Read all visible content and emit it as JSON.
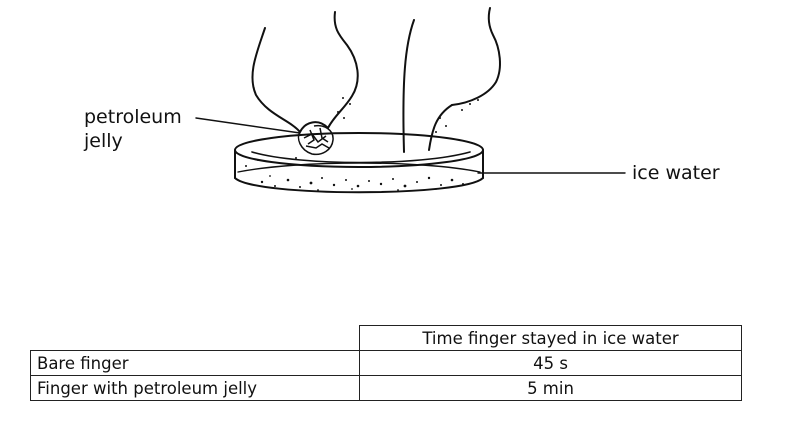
{
  "diagram": {
    "labels": {
      "petroleum_jelly_line1": "petroleum",
      "petroleum_jelly_line2": "jelly",
      "ice_water": "ice water"
    }
  },
  "table": {
    "header": "Time finger stayed in ice water",
    "rows": [
      {
        "label": "Bare finger",
        "value": "45 s"
      },
      {
        "label": "Finger with petroleum jelly",
        "value": "5 min"
      }
    ]
  }
}
